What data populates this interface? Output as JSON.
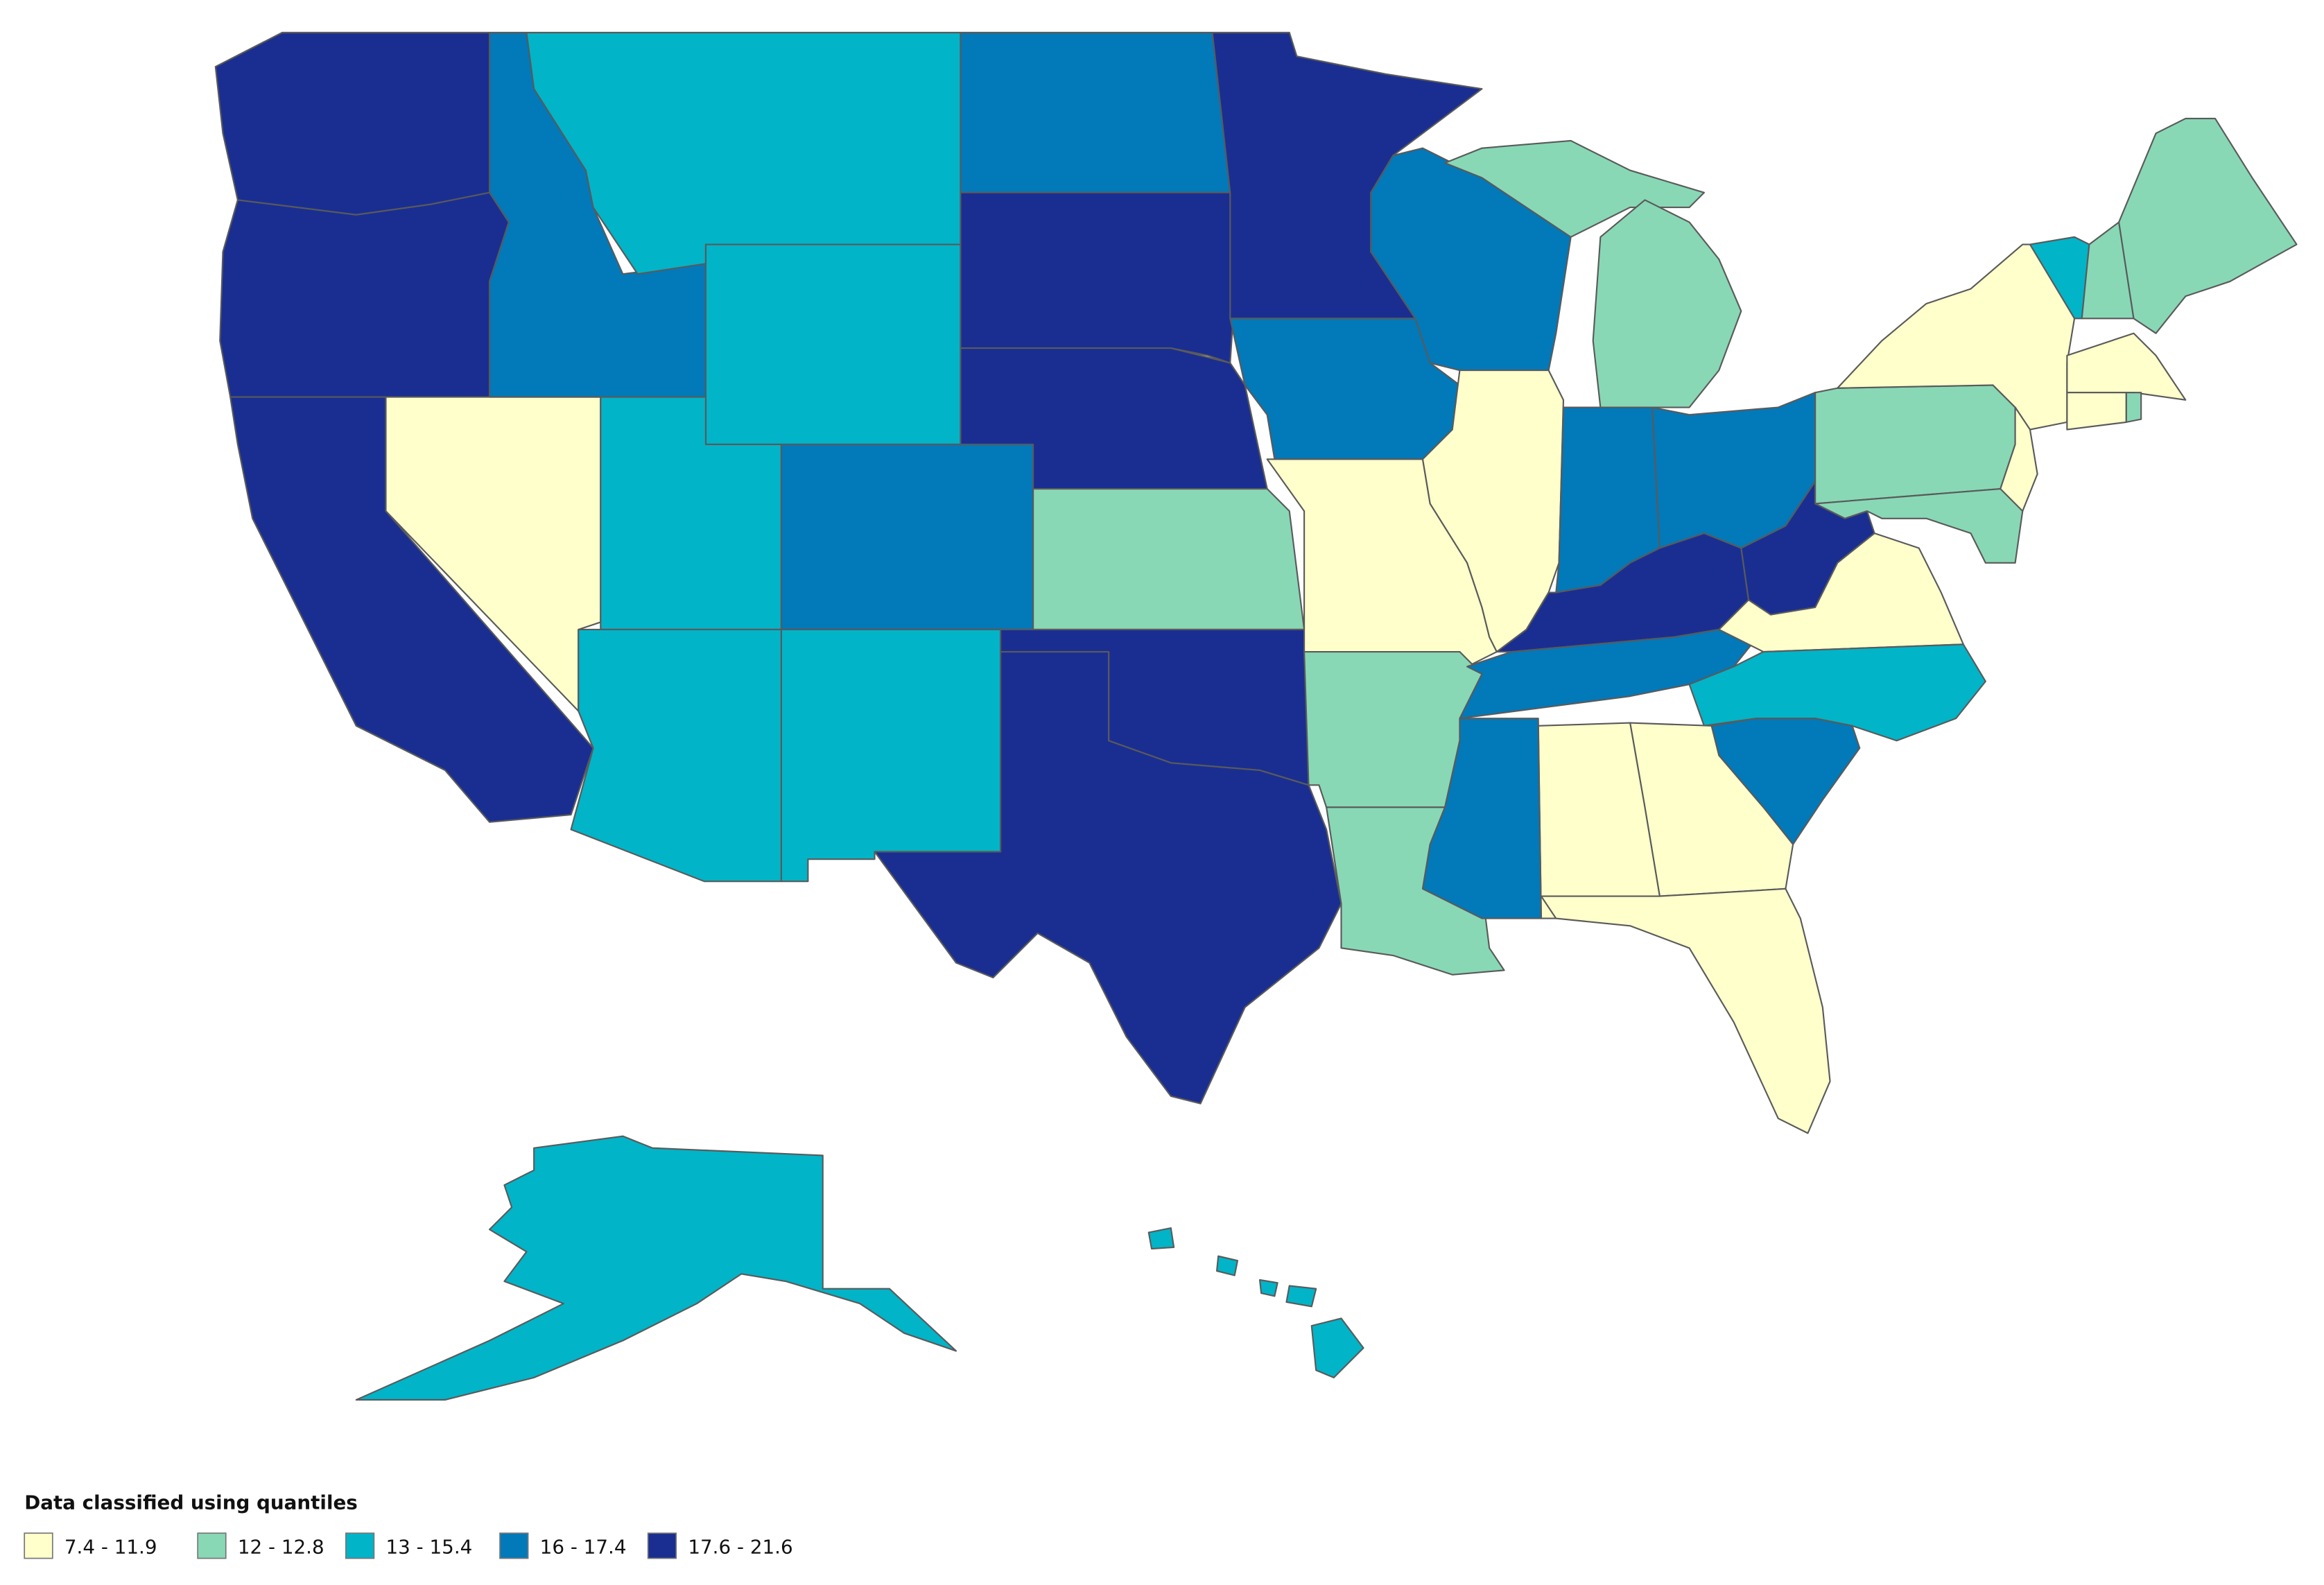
{
  "legend": {
    "title": "Data classified using quantiles",
    "classes": [
      {
        "label": "7.4 - 11.9",
        "color": "#ffffcc"
      },
      {
        "label": "12 - 12.8",
        "color": "#88d8b6"
      },
      {
        "label": "13 - 15.4",
        "color": "#01b4c8"
      },
      {
        "label": "16 - 17.4",
        "color": "#0279b9"
      },
      {
        "label": "17.6 - 21.6",
        "color": "#1a2e91"
      }
    ]
  }
}
